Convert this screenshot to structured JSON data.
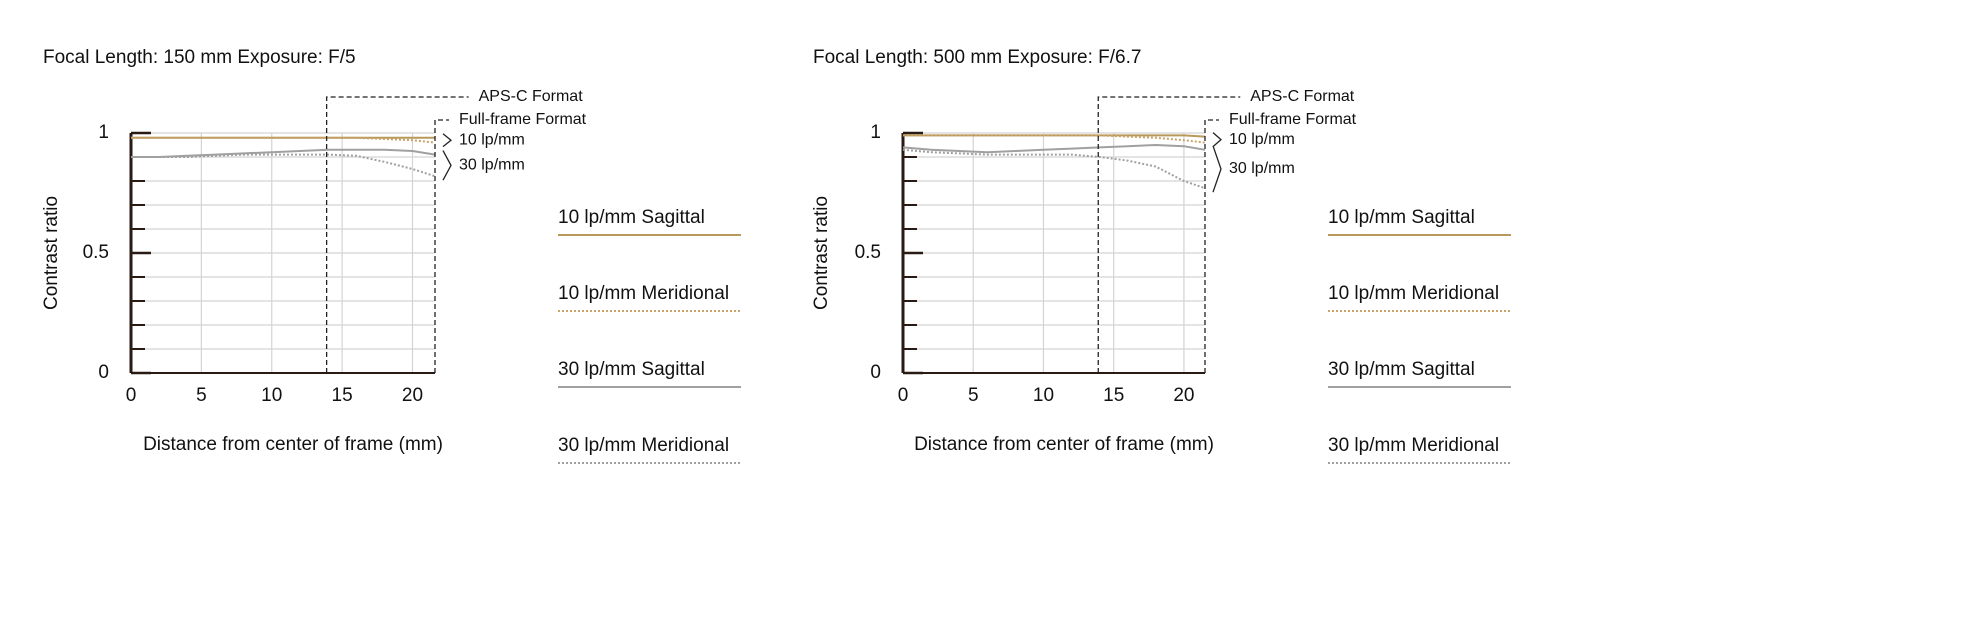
{
  "chart_data": [
    {
      "type": "line",
      "title": "Focal Length: 150 mm  Exposure: F/5",
      "x_label": "Distance from center of frame (mm)",
      "y_label": "Contrast ratio",
      "x": [
        0,
        2,
        4,
        6,
        8,
        10,
        12,
        14,
        16,
        18,
        20,
        21.6
      ],
      "series": [
        {
          "name": "10 lp/mm Sagittal",
          "color": "#b8995a",
          "style": "solid",
          "values": [
            0.98,
            0.98,
            0.98,
            0.98,
            0.98,
            0.98,
            0.98,
            0.98,
            0.98,
            0.98,
            0.98,
            0.98
          ]
        },
        {
          "name": "10 lp/mm Meridional",
          "color": "#c9a36a",
          "style": "dotted",
          "values": [
            0.98,
            0.98,
            0.98,
            0.98,
            0.98,
            0.98,
            0.98,
            0.98,
            0.98,
            0.975,
            0.97,
            0.96
          ]
        },
        {
          "name": "30 lp/mm Sagittal",
          "color": "#a0a0a0",
          "style": "solid",
          "values": [
            0.9,
            0.9,
            0.905,
            0.91,
            0.915,
            0.92,
            0.925,
            0.93,
            0.93,
            0.93,
            0.925,
            0.91
          ]
        },
        {
          "name": "30 lp/mm Meridional",
          "color": "#a0a0a0",
          "style": "dotted",
          "values": [
            0.9,
            0.9,
            0.9,
            0.905,
            0.91,
            0.91,
            0.91,
            0.91,
            0.905,
            0.88,
            0.85,
            0.82
          ]
        }
      ],
      "xlim": [
        0,
        21.6
      ],
      "ylim": [
        0,
        1
      ],
      "xticks": [
        0,
        5,
        10,
        15,
        20
      ],
      "yticks": [
        0,
        0.5,
        1
      ],
      "y_minor_ticks": [
        0.1,
        0.2,
        0.3,
        0.4,
        0.6,
        0.7,
        0.8,
        0.9
      ],
      "grid": true,
      "annotations": [
        {
          "text": "APS-C Format",
          "x": 13.9
        },
        {
          "text": "Full-frame Format",
          "x": 21.6
        }
      ],
      "bracket_labels": [
        "10 lp/mm",
        "30 lp/mm"
      ]
    },
    {
      "type": "line",
      "title": "Focal Length: 500 mm  Exposure: F/6.7",
      "x_label": "Distance from center of frame (mm)",
      "y_label": "Contrast ratio",
      "x": [
        0,
        2,
        4,
        6,
        8,
        10,
        12,
        14,
        16,
        18,
        20,
        21.5
      ],
      "series": [
        {
          "name": "10 lp/mm Sagittal",
          "color": "#b8995a",
          "style": "solid",
          "values": [
            0.99,
            0.99,
            0.99,
            0.99,
            0.99,
            0.99,
            0.99,
            0.99,
            0.99,
            0.99,
            0.99,
            0.985
          ]
        },
        {
          "name": "10 lp/mm Meridional",
          "color": "#c9a36a",
          "style": "dotted",
          "values": [
            0.99,
            0.99,
            0.99,
            0.99,
            0.99,
            0.99,
            0.99,
            0.99,
            0.985,
            0.98,
            0.97,
            0.96
          ]
        },
        {
          "name": "30 lp/mm Sagittal",
          "color": "#a0a0a0",
          "style": "solid",
          "values": [
            0.94,
            0.93,
            0.925,
            0.92,
            0.925,
            0.93,
            0.935,
            0.94,
            0.945,
            0.95,
            0.945,
            0.93
          ]
        },
        {
          "name": "30 lp/mm Meridional",
          "color": "#a0a0a0",
          "style": "dotted",
          "values": [
            0.93,
            0.92,
            0.915,
            0.91,
            0.91,
            0.91,
            0.91,
            0.9,
            0.885,
            0.86,
            0.8,
            0.77
          ]
        }
      ],
      "xlim": [
        0,
        21.5
      ],
      "ylim": [
        0,
        1
      ],
      "xticks": [
        0,
        5,
        10,
        15,
        20
      ],
      "yticks": [
        0,
        0.5,
        1
      ],
      "y_minor_ticks": [
        0.1,
        0.2,
        0.3,
        0.4,
        0.6,
        0.7,
        0.8,
        0.9
      ],
      "grid": true,
      "annotations": [
        {
          "text": "APS-C Format",
          "x": 13.9
        },
        {
          "text": "Full-frame Format",
          "x": 21.5
        }
      ],
      "bracket_labels": [
        "10 lp/mm",
        "30 lp/mm"
      ]
    }
  ]
}
